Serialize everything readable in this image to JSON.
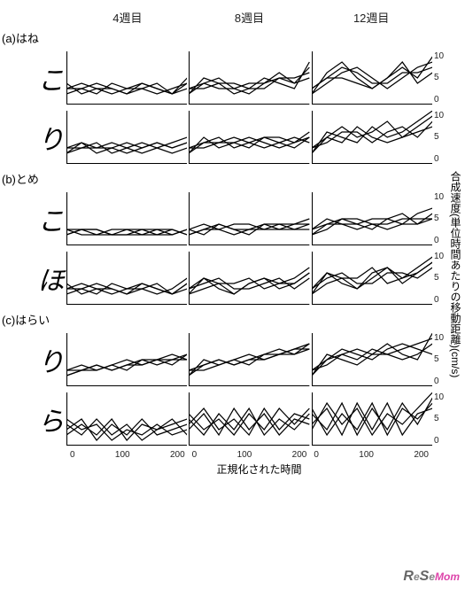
{
  "columns": [
    "4週目",
    "8週目",
    "12週目"
  ],
  "sections": [
    {
      "id": "(a)はね",
      "rows": [
        "こ",
        "り"
      ]
    },
    {
      "id": "(b)とめ",
      "rows": [
        "こ",
        "ほ"
      ]
    },
    {
      "id": "(c)はらい",
      "rows": [
        "り",
        "ら"
      ]
    }
  ],
  "x_ticks": [
    0,
    100,
    200
  ],
  "x_label": "正規化された時間",
  "y_ticks": {
    "top": 10,
    "mid": 5,
    "bot": 0
  },
  "y_label": "合成速度(単位時間あたりの移動距離)(cm/s)",
  "panel_style": {
    "xlim": [
      0,
      250
    ],
    "ylim": [
      0,
      10
    ],
    "stroke": "#000000",
    "stroke_width": 1.2,
    "axis_color": "#000000",
    "axis_width": 1,
    "bg": "#ffffff",
    "n_lines": 4
  },
  "series": {
    "hane_ko": [
      [
        [
          3,
          4,
          3,
          2,
          3,
          4,
          3,
          2,
          4
        ],
        [
          2,
          3,
          4,
          3,
          2,
          3,
          4,
          2,
          5
        ],
        [
          3,
          3,
          2,
          4,
          3,
          3,
          2,
          3,
          4
        ],
        [
          4,
          2,
          3,
          3,
          2,
          4,
          3,
          2,
          3
        ]
      ],
      [
        [
          2,
          4,
          5,
          3,
          2,
          4,
          6,
          4,
          7
        ],
        [
          3,
          3,
          4,
          4,
          3,
          3,
          5,
          5,
          6
        ],
        [
          2,
          5,
          4,
          2,
          3,
          5,
          4,
          3,
          8
        ],
        [
          3,
          4,
          3,
          3,
          4,
          4,
          5,
          4,
          5
        ]
      ],
      [
        [
          2,
          6,
          8,
          5,
          3,
          5,
          7,
          5,
          9
        ],
        [
          3,
          5,
          7,
          6,
          4,
          4,
          6,
          6,
          7
        ],
        [
          2,
          4,
          6,
          7,
          5,
          3,
          5,
          7,
          8
        ],
        [
          3,
          5,
          5,
          4,
          3,
          5,
          8,
          4,
          6
        ]
      ]
    ],
    "hane_ri": [
      [
        [
          2,
          4,
          3,
          3,
          2,
          3,
          4,
          3,
          4
        ],
        [
          3,
          3,
          4,
          2,
          3,
          4,
          3,
          2,
          3
        ],
        [
          2,
          3,
          3,
          4,
          3,
          2,
          3,
          4,
          5
        ],
        [
          3,
          4,
          2,
          3,
          4,
          3,
          4,
          3,
          4
        ]
      ],
      [
        [
          2,
          4,
          5,
          3,
          4,
          5,
          4,
          3,
          5
        ],
        [
          3,
          3,
          4,
          4,
          5,
          4,
          3,
          4,
          6
        ],
        [
          2,
          5,
          3,
          4,
          3,
          5,
          5,
          4,
          5
        ],
        [
          3,
          4,
          4,
          5,
          4,
          3,
          4,
          5,
          4
        ]
      ],
      [
        [
          2,
          5,
          7,
          5,
          6,
          8,
          5,
          7,
          9
        ],
        [
          3,
          4,
          6,
          6,
          4,
          6,
          7,
          5,
          8
        ],
        [
          2,
          6,
          5,
          4,
          7,
          5,
          6,
          8,
          10
        ],
        [
          3,
          5,
          4,
          7,
          5,
          4,
          5,
          6,
          7
        ]
      ]
    ],
    "tome_ko": [
      [
        [
          2,
          3,
          3,
          2,
          2,
          3,
          3,
          2,
          3
        ],
        [
          3,
          2,
          2,
          3,
          3,
          2,
          2,
          3,
          2
        ],
        [
          2,
          3,
          2,
          2,
          3,
          3,
          2,
          2,
          3
        ],
        [
          3,
          3,
          3,
          2,
          2,
          2,
          3,
          3,
          2
        ]
      ],
      [
        [
          2,
          3,
          4,
          3,
          3,
          4,
          3,
          3,
          4
        ],
        [
          3,
          4,
          3,
          2,
          3,
          3,
          4,
          4,
          5
        ],
        [
          2,
          3,
          3,
          4,
          4,
          3,
          3,
          4,
          4
        ],
        [
          3,
          2,
          4,
          3,
          2,
          4,
          4,
          3,
          3
        ]
      ],
      [
        [
          2,
          4,
          5,
          4,
          3,
          5,
          6,
          4,
          6
        ],
        [
          3,
          5,
          4,
          3,
          4,
          4,
          5,
          5,
          5
        ],
        [
          2,
          3,
          5,
          5,
          4,
          3,
          4,
          6,
          7
        ],
        [
          3,
          4,
          4,
          4,
          5,
          5,
          4,
          4,
          5
        ]
      ]
    ],
    "tome_ho": [
      [
        [
          3,
          4,
          3,
          2,
          3,
          4,
          3,
          2,
          4
        ],
        [
          2,
          3,
          4,
          3,
          2,
          3,
          4,
          2,
          3
        ],
        [
          3,
          3,
          2,
          4,
          3,
          3,
          2,
          3,
          5
        ],
        [
          4,
          2,
          3,
          3,
          2,
          4,
          3,
          2,
          4
        ]
      ],
      [
        [
          2,
          5,
          4,
          2,
          4,
          5,
          3,
          4,
          6
        ],
        [
          3,
          4,
          5,
          3,
          3,
          4,
          5,
          3,
          5
        ],
        [
          2,
          3,
          4,
          4,
          5,
          3,
          4,
          5,
          7
        ],
        [
          3,
          5,
          3,
          2,
          4,
          5,
          4,
          4,
          6
        ]
      ],
      [
        [
          2,
          6,
          5,
          3,
          6,
          7,
          4,
          6,
          8
        ],
        [
          3,
          5,
          6,
          4,
          4,
          6,
          6,
          5,
          7
        ],
        [
          2,
          4,
          5,
          5,
          7,
          4,
          5,
          7,
          9
        ],
        [
          3,
          6,
          4,
          3,
          5,
          7,
          5,
          6,
          8
        ]
      ]
    ],
    "harai_ri": [
      [
        [
          2,
          3,
          4,
          3,
          4,
          4,
          5,
          5,
          6
        ],
        [
          3,
          4,
          3,
          4,
          3,
          5,
          4,
          5,
          5
        ],
        [
          2,
          3,
          3,
          4,
          5,
          4,
          5,
          4,
          6
        ],
        [
          3,
          3,
          4,
          3,
          4,
          5,
          5,
          6,
          5
        ]
      ],
      [
        [
          2,
          4,
          5,
          4,
          5,
          6,
          6,
          7,
          8
        ],
        [
          3,
          3,
          4,
          5,
          6,
          5,
          6,
          6,
          7
        ],
        [
          2,
          5,
          4,
          5,
          4,
          6,
          7,
          6,
          8
        ],
        [
          3,
          4,
          5,
          4,
          5,
          5,
          6,
          7,
          7
        ]
      ],
      [
        [
          2,
          5,
          7,
          6,
          5,
          7,
          8,
          7,
          6
        ],
        [
          3,
          4,
          6,
          7,
          6,
          6,
          7,
          8,
          9
        ],
        [
          2,
          6,
          5,
          4,
          6,
          8,
          6,
          5,
          10
        ],
        [
          3,
          5,
          6,
          5,
          7,
          6,
          5,
          6,
          8
        ]
      ]
    ],
    "harai_ra": [
      [
        [
          4,
          2,
          5,
          2,
          4,
          1,
          3,
          5,
          2
        ],
        [
          3,
          5,
          1,
          4,
          2,
          5,
          2,
          3,
          4
        ],
        [
          5,
          3,
          4,
          1,
          3,
          2,
          4,
          2,
          3
        ],
        [
          2,
          4,
          2,
          5,
          1,
          4,
          3,
          4,
          5
        ]
      ],
      [
        [
          5,
          2,
          6,
          3,
          7,
          2,
          5,
          3,
          6
        ],
        [
          3,
          6,
          2,
          7,
          3,
          6,
          2,
          5,
          4
        ],
        [
          6,
          3,
          5,
          2,
          6,
          3,
          7,
          4,
          7
        ],
        [
          4,
          7,
          3,
          5,
          2,
          7,
          3,
          6,
          5
        ]
      ],
      [
        [
          6,
          3,
          8,
          2,
          7,
          3,
          8,
          4,
          9
        ],
        [
          4,
          7,
          2,
          8,
          3,
          8,
          2,
          6,
          7
        ],
        [
          7,
          2,
          6,
          3,
          8,
          2,
          7,
          5,
          8
        ],
        [
          3,
          8,
          4,
          7,
          2,
          6,
          4,
          7,
          10
        ]
      ]
    ]
  },
  "watermark": {
    "prefix": "R",
    "mid": "e",
    "suffix": "S",
    "end": "e",
    "mom": "Mom"
  }
}
